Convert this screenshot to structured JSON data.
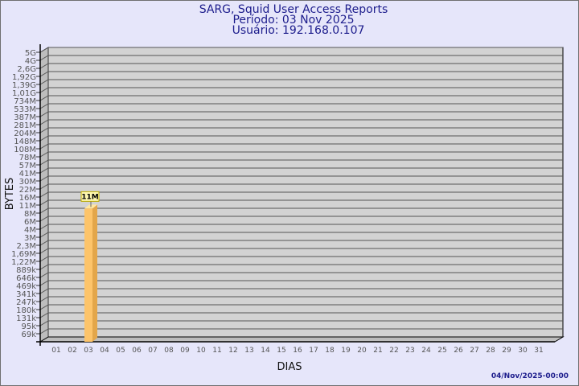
{
  "chart_data": {
    "type": "bar",
    "title": "SARG, Squid User Access Reports",
    "subtitle": [
      "Período: 03 Nov 2025",
      "Usuário: 192.168.0.107"
    ],
    "xlabel": "DIAS",
    "ylabel": "BYTES",
    "y_scale": "log",
    "y_tick_labels": [
      "5G",
      "4G",
      "2,6G",
      "1,92G",
      "1,39G",
      "1,01G",
      "734M",
      "533M",
      "387M",
      "281M",
      "204M",
      "148M",
      "108M",
      "78M",
      "57M",
      "41M",
      "30M",
      "22M",
      "16M",
      "11M",
      "8M",
      "6M",
      "4M",
      "3M",
      "2,3M",
      "1,69M",
      "1,22M",
      "889k",
      "646k",
      "469k",
      "341k",
      "247k",
      "180k",
      "131k",
      "95k",
      "69k"
    ],
    "categories": [
      "01",
      "02",
      "03",
      "04",
      "05",
      "06",
      "07",
      "08",
      "09",
      "10",
      "11",
      "12",
      "13",
      "14",
      "15",
      "16",
      "17",
      "18",
      "19",
      "20",
      "21",
      "22",
      "23",
      "24",
      "25",
      "26",
      "27",
      "28",
      "29",
      "30",
      "31"
    ],
    "values": [
      0,
      0,
      11000000,
      0,
      0,
      0,
      0,
      0,
      0,
      0,
      0,
      0,
      0,
      0,
      0,
      0,
      0,
      0,
      0,
      0,
      0,
      0,
      0,
      0,
      0,
      0,
      0,
      0,
      0,
      0,
      0
    ],
    "data_labels": {
      "03": "11M"
    },
    "grid": true,
    "colors": {
      "background": "#e6e6fa",
      "plot": "#d3d3d3",
      "bar": "#fdc46a",
      "bar_side": "#e3a64a",
      "label_box": "#fff8b0"
    }
  },
  "footer": {
    "timestamp": "04/Nov/2025-00:00"
  }
}
